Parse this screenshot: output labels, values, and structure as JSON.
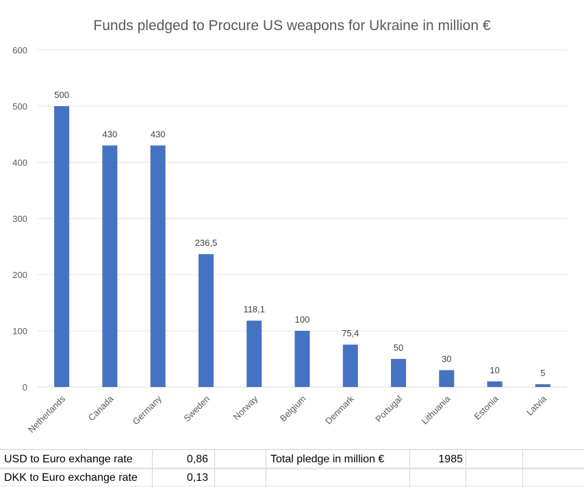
{
  "chart_data": {
    "type": "bar",
    "title": "Funds pledged to Procure US weapons for Ukraine in million €",
    "xlabel": "",
    "ylabel": "",
    "categories": [
      "Netherlands",
      "Canada",
      "Germany",
      "Sweden",
      "Norway",
      "Belgium",
      "Denmark",
      "Portugal",
      "Lithuania",
      "Estonia",
      "Latvia"
    ],
    "values": [
      500,
      430,
      430,
      236.5,
      118.1,
      100,
      75.4,
      50,
      30,
      10,
      5
    ],
    "data_labels": [
      "500",
      "430",
      "430",
      "236,5",
      "118,1",
      "100",
      "75,4",
      "50",
      "30",
      "10",
      "5"
    ],
    "ylim": [
      0,
      600
    ],
    "yticks": [
      0,
      100,
      200,
      300,
      400,
      500,
      600
    ],
    "grid": true,
    "legend": "none",
    "bar_color": "#4472c4"
  },
  "table": {
    "row1": {
      "usd_label": "USD to Euro exhange rate",
      "usd_value": "0,86",
      "total_label": "Total pledge in million €",
      "total_value": "1985"
    },
    "row2": {
      "dkk_label": "DKK to Euro exchange rate",
      "dkk_value": "0,13"
    }
  }
}
